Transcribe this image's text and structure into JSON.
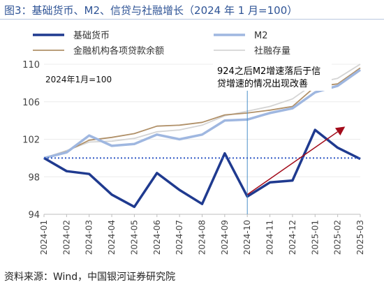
{
  "header": {
    "title": "图3：基础货币、M2、信贷与社融增长（2024 年 1 月=100）"
  },
  "footer": {
    "source": "资料来源：Wind，中国银河证券研究院"
  },
  "colors": {
    "base_money": "#1f3a8f",
    "m2": "#9fb7e0",
    "loans": "#b09068",
    "social_financing": "#d4d4d4",
    "arrow": "#a30b1a",
    "baseline": "#2f57c4",
    "vline": "#4a90c8"
  },
  "chart_data": {
    "type": "line",
    "note": "2024年1月=100",
    "annotation": "924之后M2增速落后于信贷增速的情况出现改善",
    "annotation_lines": [
      "924之后M2增速落后于信",
      "贷增速的情况出现改善"
    ],
    "ylim": [
      94,
      110
    ],
    "yticks": [
      94,
      98,
      102,
      106,
      110
    ],
    "baseline": 100,
    "categories": [
      "2024-01",
      "2024-02",
      "2024-03",
      "2024-04",
      "2024-05",
      "2024-06",
      "2024-07",
      "2024-08",
      "2024-09",
      "2024-10",
      "2024-11",
      "2024-12",
      "2025-01",
      "2025-02",
      "2025-03"
    ],
    "series": [
      {
        "name": "基础货币",
        "color": "#1f3a8f",
        "width": 3.5,
        "values": [
          100.0,
          98.6,
          98.3,
          96.1,
          94.8,
          98.4,
          96.6,
          95.1,
          100.5,
          95.9,
          97.4,
          97.6,
          103.0,
          101.1,
          99.9
        ]
      },
      {
        "name": "M2",
        "color": "#9fb7e0",
        "width": 3.5,
        "values": [
          100.0,
          100.6,
          102.4,
          101.3,
          101.5,
          102.5,
          102.0,
          102.5,
          104.0,
          104.1,
          104.8,
          105.3,
          107.0,
          107.7,
          109.4
        ]
      },
      {
        "name": "金融机构各项贷款余额",
        "color": "#b09068",
        "width": 1.8,
        "values": [
          100.0,
          100.7,
          101.9,
          102.2,
          102.6,
          103.4,
          103.5,
          103.8,
          104.6,
          104.8,
          105.1,
          105.5,
          107.6,
          107.9,
          109.6
        ]
      },
      {
        "name": "社融存量",
        "color": "#d4d4d4",
        "width": 1.8,
        "values": [
          100.0,
          100.8,
          101.7,
          101.8,
          102.1,
          102.8,
          103.0,
          103.5,
          104.5,
          105.0,
          105.5,
          106.3,
          108.0,
          108.5,
          110.0
        ]
      }
    ],
    "trend_arrow": {
      "from_x": "2024-10",
      "from_y": 96.1,
      "to_x": "2025-02",
      "to_y": 102.8
    },
    "vline_at": "2024-10"
  }
}
